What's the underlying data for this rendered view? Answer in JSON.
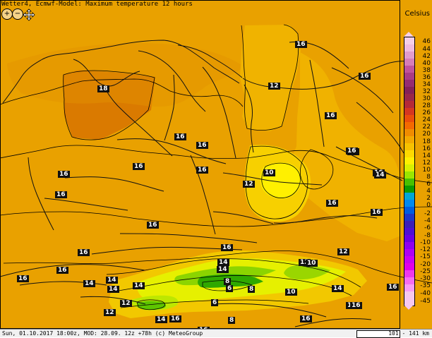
{
  "map": {
    "title": "Wetter4, Ecmwf-Model: Maximum temperature 12 hours",
    "unit": "Celsius",
    "legend_values": [
      "46",
      "44",
      "42",
      "40",
      "38",
      "36",
      "34",
      "32",
      "30",
      "28",
      "26",
      "24",
      "22",
      "20",
      "18",
      "16",
      "14",
      "12",
      "10",
      "8",
      "6",
      "4",
      "2",
      "0",
      "-2",
      "-4",
      "-6",
      "-8",
      "-10",
      "-12",
      "-15",
      "-20",
      "-25",
      "-30",
      "-35",
      "-40",
      "-45"
    ],
    "labels": [
      "18",
      "16",
      "16",
      "16",
      "12",
      "16",
      "16",
      "16",
      "16",
      "16",
      "16",
      "16",
      "16",
      "16",
      "16",
      "16",
      "16",
      "16",
      "12",
      "10",
      "16",
      "16",
      "16",
      "16",
      "16",
      "14",
      "14",
      "14",
      "14",
      "14",
      "12",
      "12",
      "14",
      "16",
      "10",
      "12",
      "8",
      "8",
      "12",
      "6",
      "6",
      "8",
      "14",
      "14",
      "10",
      "16",
      "16",
      "14",
      "16"
    ],
    "footer_left": "Sun, 01.10.2017 18:00z, MOD: 28.09. 12z +78h (c) MeteoGroup",
    "scale_text": "101 - 141 km"
  }
}
